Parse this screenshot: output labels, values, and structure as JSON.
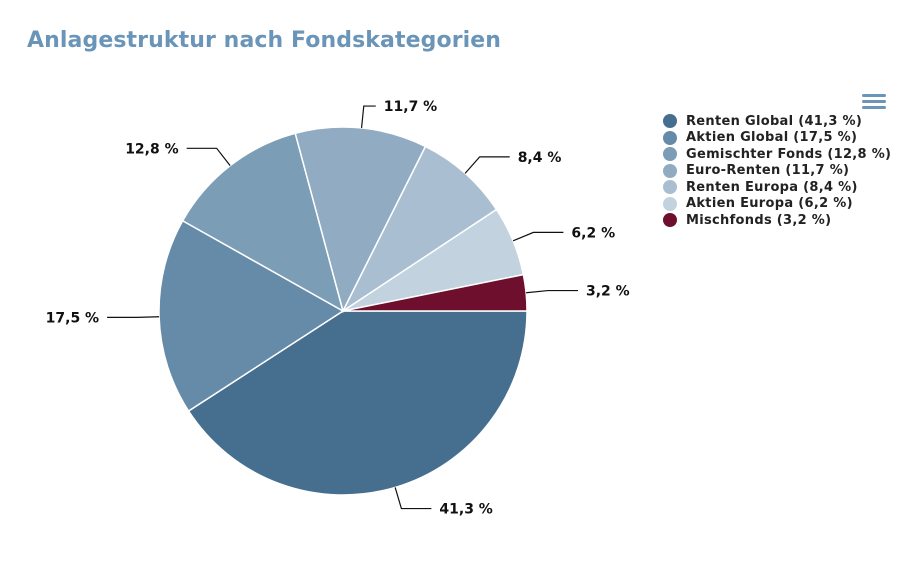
{
  "title": "Anlagestruktur nach Fondskategorien",
  "menu_icon": "hamburger-menu-icon",
  "chart_data": {
    "type": "pie",
    "title": "Anlagestruktur nach Fondskategorien",
    "legend_position": "top-right",
    "slices": [
      {
        "name": "Renten Global",
        "value": 41.3,
        "label": "41,3 %",
        "legend": "Renten Global (41,3 %)",
        "color": "#456e8f"
      },
      {
        "name": "Aktien Global",
        "value": 17.5,
        "label": "17,5 %",
        "legend": "Aktien Global (17,5 %)",
        "color": "#658ba9"
      },
      {
        "name": "Gemischter Fonds",
        "value": 12.8,
        "label": "12,8 %",
        "legend": "Gemischter Fonds (12,8 %)",
        "color": "#7c9db6"
      },
      {
        "name": "Euro-Renten",
        "value": 11.7,
        "label": "11,7 %",
        "legend": "Euro-Renten (11,7 %)",
        "color": "#91acc2"
      },
      {
        "name": "Renten Europa",
        "value": 8.4,
        "label": "8,4 %",
        "legend": "Renten Europa (8,4 %)",
        "color": "#a9bfd1"
      },
      {
        "name": "Aktien Europa",
        "value": 6.2,
        "label": "6,2 %",
        "legend": "Aktien Europa (6,2 %)",
        "color": "#c2d2df"
      },
      {
        "name": "Mischfonds",
        "value": 3.2,
        "label": "3,2 %",
        "legend": "Mischfonds (3,2 %)",
        "color": "#6e0f2d"
      }
    ]
  }
}
